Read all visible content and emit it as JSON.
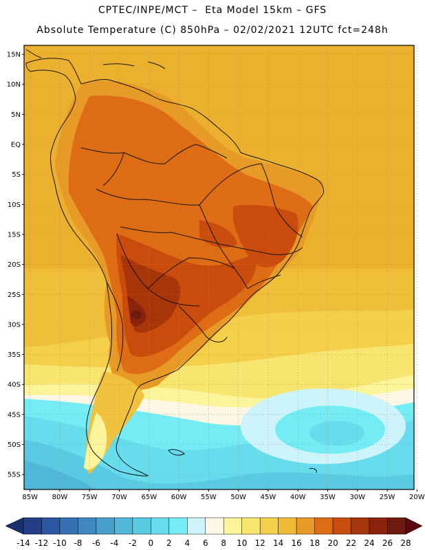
{
  "header": {
    "line1": "CPTEC/INPE/MCT –  Eta Model 15km – GFS",
    "line2": "Absolute Temperature (C) 850hPa – 02/02/2021 12UTC fct=248h"
  },
  "map": {
    "lat_labels": [
      "15N",
      "10N",
      "5N",
      "EQ",
      "5S",
      "10S",
      "15S",
      "20S",
      "25S",
      "30S",
      "35S",
      "40S",
      "45S",
      "50S",
      "55S"
    ],
    "lon_labels": [
      "85W",
      "80W",
      "75W",
      "70W",
      "65W",
      "60W",
      "55W",
      "50W",
      "45W",
      "40W",
      "35W",
      "30W",
      "25W",
      "20W"
    ],
    "lat_values": [
      15,
      10,
      5,
      0,
      -5,
      -10,
      -15,
      -20,
      -25,
      -30,
      -35,
      -40,
      -45,
      -50,
      -55
    ],
    "lon_values": [
      -85,
      -80,
      -75,
      -70,
      -65,
      -60,
      -55,
      -50,
      -45,
      -40,
      -35,
      -30,
      -25,
      -20
    ],
    "lat_range": [
      -57.5,
      16.5
    ],
    "lon_range": [
      -86,
      -20.5
    ]
  },
  "colorbar": {
    "labels": [
      "-14",
      "-12",
      "-10",
      "-8",
      "-6",
      "-4",
      "-2",
      "0",
      "2",
      "4",
      "6",
      "8",
      "10",
      "12",
      "14",
      "16",
      "18",
      "20",
      "22",
      "24",
      "26",
      "28"
    ],
    "colors": [
      "#233e87",
      "#2b57a0",
      "#3570b1",
      "#3f88c0",
      "#47a0cc",
      "#4fb8d8",
      "#5ac9e2",
      "#66dcec",
      "#74ecf4",
      "#cdf4fb",
      "#fcf6e4",
      "#fbf49b",
      "#f8e56f",
      "#f4d04a",
      "#efbb36",
      "#e89a26",
      "#dd6c14",
      "#c94c0c",
      "#a8340a",
      "#8a220c",
      "#6f1a10"
    ],
    "left_arrow_color": "#1a2f6e",
    "right_arrow_color": "#5b0a12"
  }
}
